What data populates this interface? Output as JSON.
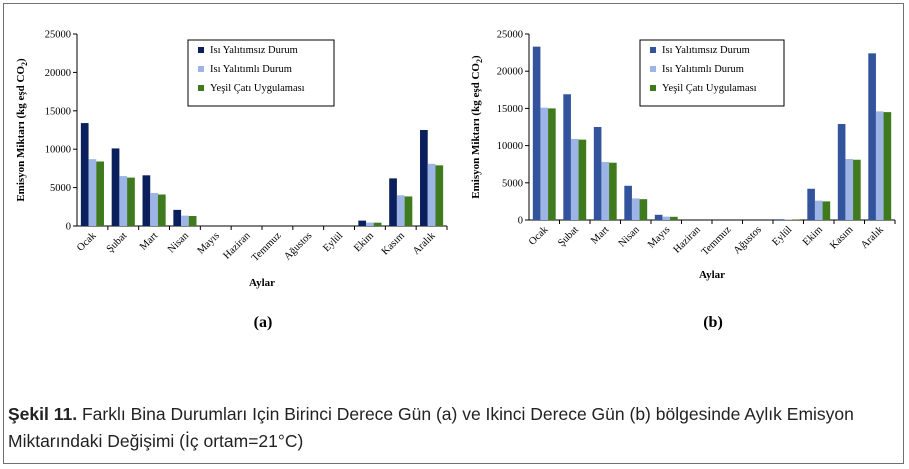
{
  "chart_data": [
    {
      "type": "bar",
      "panel_label": "(a)",
      "xlabel": "Aylar",
      "ylabel": "Emisyon Miktarı (kg eşd CO",
      "ylabel_sub": "2",
      "ylabel_close": ")",
      "ylim": [
        0,
        25000
      ],
      "yticks": [
        "0",
        "5000",
        "10000",
        "15000",
        "20000",
        "25000"
      ],
      "grid": false,
      "legend_position": "top-center",
      "categories": [
        "Ocak",
        "Şubat",
        "Mart",
        "Nisan",
        "Mayıs",
        "Haziran",
        "Temmuz",
        "Ağustos",
        "Eylül",
        "Ekim",
        "Kasım",
        "Aralık"
      ],
      "series": [
        {
          "name": "Isı Yalıtımsız Durum",
          "color": "#0a1f5c",
          "values": [
            13400,
            10100,
            6600,
            2100,
            0,
            0,
            0,
            0,
            0,
            700,
            6200,
            12500
          ]
        },
        {
          "name": "Isı Yalıtımlı Durum",
          "color": "#9db4e6",
          "values": [
            8700,
            6500,
            4300,
            1350,
            0,
            0,
            0,
            0,
            0,
            450,
            4000,
            8100
          ]
        },
        {
          "name": "Yeşil Çatı Uygulaması",
          "color": "#3f7a1e",
          "values": [
            8400,
            6300,
            4100,
            1300,
            0,
            0,
            0,
            0,
            0,
            430,
            3850,
            7900
          ]
        }
      ]
    },
    {
      "type": "bar",
      "panel_label": "(b)",
      "xlabel": "Aylar",
      "ylabel": "Emisyon Miktarı (kg eşd CO",
      "ylabel_sub": "2",
      "ylabel_close": ")",
      "ylim": [
        0,
        25000
      ],
      "yticks": [
        "0",
        "5000",
        "10000",
        "15000",
        "20000",
        "25000"
      ],
      "grid": false,
      "legend_position": "top-center",
      "categories": [
        "Ocak",
        "Şubat",
        "Mart",
        "Nisan",
        "Mayıs",
        "Haziran",
        "Temmuz",
        "Ağustos",
        "Eylül",
        "Ekim",
        "Kasım",
        "Aralık"
      ],
      "series": [
        {
          "name": "Isı Yalıtımsız Durum",
          "color": "#33549d",
          "values": [
            23300,
            16900,
            12500,
            4600,
            700,
            0,
            0,
            0,
            100,
            4200,
            12900,
            22400
          ]
        },
        {
          "name": "Isı Yalıtımlı Durum",
          "color": "#9db4e6",
          "values": [
            15100,
            10900,
            7800,
            2900,
            450,
            0,
            0,
            0,
            60,
            2600,
            8200,
            14600
          ]
        },
        {
          "name": "Yeşil Çatı Uygulaması",
          "color": "#3f7a1e",
          "values": [
            15000,
            10800,
            7700,
            2800,
            430,
            0,
            0,
            0,
            60,
            2500,
            8100,
            14500
          ]
        }
      ]
    }
  ],
  "caption": {
    "label": "Şekil 11.",
    "text": " Farklı Bina Durumları Için Birinci Derece Gün (a) ve Ikinci Derece Gün (b) bölgesinde Aylık Emisyon Miktarındaki Değişimi (İç ortam=21°C)"
  }
}
